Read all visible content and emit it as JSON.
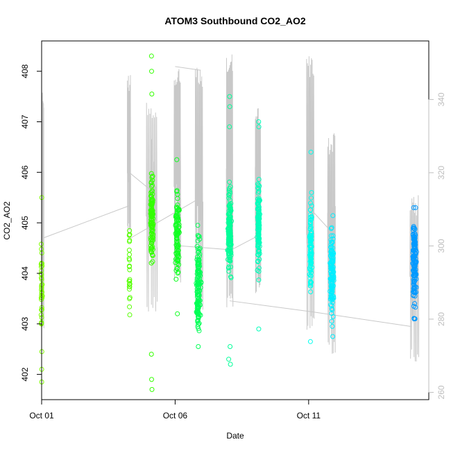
{
  "chart_data": {
    "type": "scatter",
    "title": "ATOM3 Southbound CO2_AO2",
    "xlabel": "Date",
    "ylabel": "CO2_AO2",
    "x_axis": {
      "type": "date",
      "range": [
        "2016-10-01T00:00",
        "2016-10-15T12:00"
      ],
      "ticks": [
        {
          "date": "2016-10-01",
          "label": "Oct 01"
        },
        {
          "date": "2016-10-06",
          "label": "Oct 06"
        },
        {
          "date": "2016-10-11",
          "label": "Oct 11"
        }
      ]
    },
    "y_left": {
      "range": [
        401.5,
        408.6
      ],
      "ticks": [
        402,
        403,
        404,
        405,
        406,
        407,
        408
      ]
    },
    "y_right": {
      "range": [
        258,
        356
      ],
      "ticks": [
        260,
        280,
        300,
        320,
        340
      ],
      "color": "#bdbdbd"
    },
    "marker": "open-circle",
    "line_color": "#c8c8c8",
    "scatter_clusters": [
      {
        "center": "2016-10-01T00:00",
        "spread_hours": 1.0,
        "color": "#7fff00",
        "count": 35,
        "ymin": 401.8,
        "ymax": 405.5,
        "outliers": [
          401.85,
          402.1,
          402.45,
          405.5
        ]
      },
      {
        "center": "2016-10-04T07:00",
        "spread_hours": 0.6,
        "color": "#55ff00",
        "count": 25,
        "ymin": 402.8,
        "ymax": 405.3,
        "outliers": []
      },
      {
        "center": "2016-10-05T03:00",
        "spread_hours": 1.8,
        "color": "#33ff00",
        "count": 120,
        "ymin": 401.7,
        "ymax": 408.3,
        "outliers": [
          401.7,
          401.9,
          402.4,
          407.55,
          408.0,
          408.3
        ]
      },
      {
        "center": "2016-10-06T02:00",
        "spread_hours": 2.6,
        "color": "#11ff22",
        "count": 100,
        "ymin": 403.2,
        "ymax": 406.3,
        "outliers": [
          403.2,
          405.3,
          406.25
        ]
      },
      {
        "center": "2016-10-06T21:00",
        "spread_hours": 2.6,
        "color": "#00ff55",
        "count": 140,
        "ymin": 402.5,
        "ymax": 405.0,
        "outliers": [
          402.55,
          404.95
        ]
      },
      {
        "center": "2016-10-08T01:00",
        "spread_hours": 2.2,
        "color": "#00ff99",
        "count": 150,
        "ymin": 402.2,
        "ymax": 407.5,
        "outliers": [
          402.2,
          402.3,
          402.55,
          406.9,
          407.3,
          407.5
        ]
      },
      {
        "center": "2016-10-09T03:00",
        "spread_hours": 1.4,
        "color": "#00ffbb",
        "count": 130,
        "ymin": 402.9,
        "ymax": 407.0,
        "outliers": [
          402.9,
          406.9,
          407.0
        ]
      },
      {
        "center": "2016-10-11T02:00",
        "spread_hours": 1.4,
        "color": "#00ffee",
        "count": 110,
        "ymin": 402.6,
        "ymax": 406.4,
        "outliers": [
          402.65,
          405.6,
          406.4
        ]
      },
      {
        "center": "2016-10-11T21:00",
        "spread_hours": 2.2,
        "color": "#00eeff",
        "count": 130,
        "ymin": 402.8,
        "ymax": 405.2,
        "outliers": [
          402.75,
          402.95
        ]
      },
      {
        "center": "2016-10-14T23:00",
        "spread_hours": 2.3,
        "color": "#0099ff",
        "count": 150,
        "ymin": 403.1,
        "ymax": 405.3,
        "outliers": [
          403.1,
          405.3
        ]
      }
    ],
    "line_segments": [
      {
        "from": "2016-10-01T00:00",
        "to": "2016-10-01T02:00",
        "ymin_right": 277,
        "ymax_right": 342
      },
      {
        "from": "2016-10-04T05:00",
        "to": "2016-10-04T08:00",
        "ymin_right": 302,
        "ymax_right": 347
      },
      {
        "from": "2016-10-04T22:00",
        "to": "2016-10-05T08:00",
        "ymin_right": 282,
        "ymax_right": 340
      },
      {
        "from": "2016-10-05T23:00",
        "to": "2016-10-06T05:00",
        "ymin_right": 290,
        "ymax_right": 349
      },
      {
        "from": "2016-10-06T18:00",
        "to": "2016-10-07T01:00",
        "ymin_right": 282,
        "ymax_right": 349
      },
      {
        "from": "2016-10-07T22:00",
        "to": "2016-10-08T04:00",
        "ymin_right": 283,
        "ymax_right": 353
      },
      {
        "from": "2016-10-09T00:00",
        "to": "2016-10-09T05:00",
        "ymin_right": 286,
        "ymax_right": 338
      },
      {
        "from": "2016-10-10T22:00",
        "to": "2016-10-11T05:00",
        "ymin_right": 276,
        "ymax_right": 352
      },
      {
        "from": "2016-10-11T17:00",
        "to": "2016-10-12T00:00",
        "ymin_right": 270,
        "ymax_right": 331
      },
      {
        "from": "2016-10-14T19:00",
        "to": "2016-10-15T03:00",
        "ymin_right": 267,
        "ymax_right": 314
      }
    ],
    "line_connectors": [
      [
        [
          "2016-10-01T00:00",
          302
        ],
        [
          "2016-10-04T07:00",
          311
        ]
      ],
      [
        [
          "2016-10-04T07:00",
          320
        ],
        [
          "2016-10-05T03:00",
          315
        ]
      ],
      [
        [
          "2016-10-04T07:00",
          302
        ],
        [
          "2016-10-06T22:00",
          313
        ]
      ],
      [
        [
          "2016-10-06T00:00",
          349
        ],
        [
          "2016-10-06T23:00",
          348
        ]
      ],
      [
        [
          "2016-10-06T05:00",
          300
        ],
        [
          "2016-10-08T00:00",
          299
        ]
      ],
      [
        [
          "2016-10-08T03:00",
          299
        ],
        [
          "2016-10-09T04:00",
          303
        ]
      ],
      [
        [
          "2016-10-08T01:00",
          285
        ],
        [
          "2016-10-11T03:00",
          282
        ]
      ],
      [
        [
          "2016-10-11T03:00",
          282
        ],
        [
          "2016-10-14T20:00",
          278
        ]
      ],
      [
        [
          "2016-10-11T05:00",
          309
        ],
        [
          "2016-10-11T20:00",
          304
        ]
      ]
    ]
  }
}
